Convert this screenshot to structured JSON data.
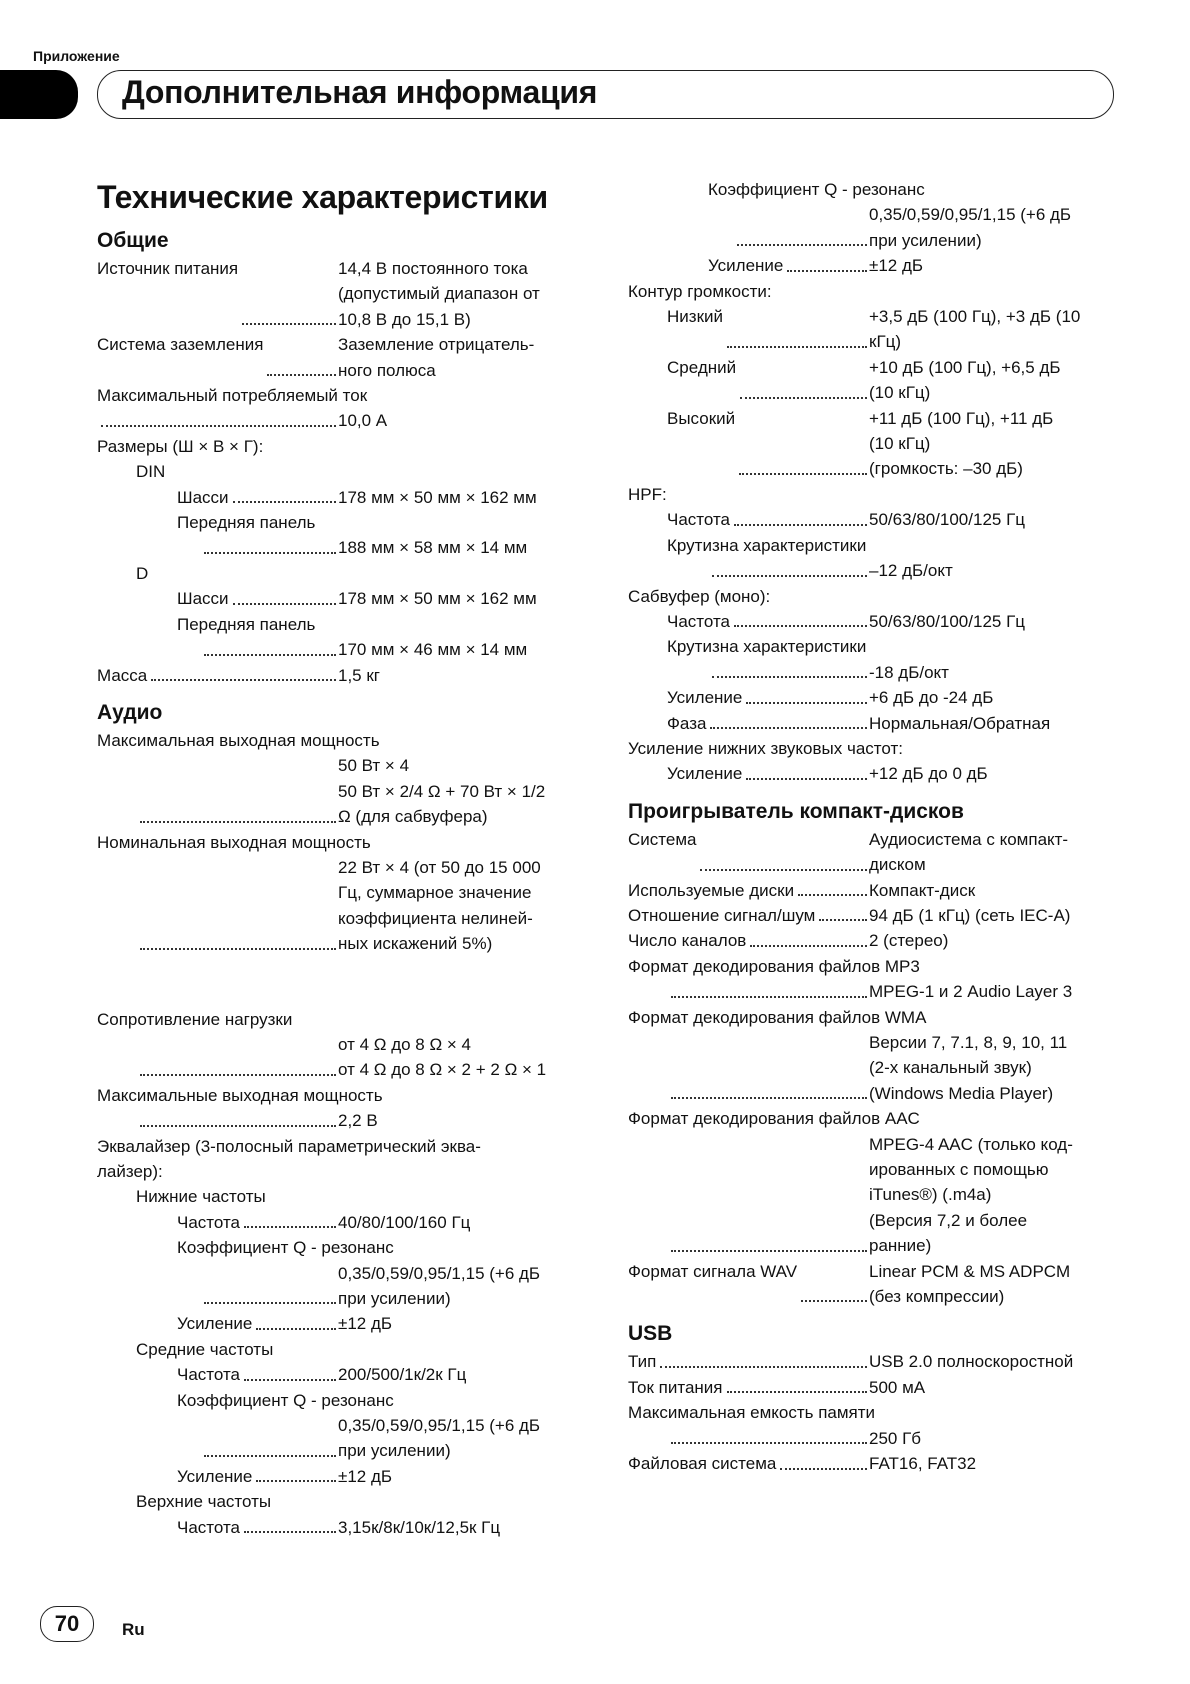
{
  "header": {
    "section": "Приложение",
    "title": "Дополнительная информация"
  },
  "footer": {
    "page": "70",
    "lang": "Ru"
  },
  "left": [
    {
      "h1": "Технические характеристики"
    },
    {
      "h2": "Общие",
      "first": true
    },
    {
      "l": "Источник питания",
      "i": 0,
      "d": true,
      "v": [
        "14,4 В постоянного тока",
        "(допустимый диапазон от",
        "10,8 В до 15,1 В)"
      ]
    },
    {
      "l": "Система заземления",
      "i": 0,
      "d": true,
      "v": [
        "Заземление отрицатель-",
        "ного полюса"
      ]
    },
    {
      "l": "Максимальный потребляемый ток",
      "i": 0
    },
    {
      "l": "",
      "i": 0,
      "d": true,
      "v": [
        "10,0 А"
      ]
    },
    {
      "l": "Размеры (Ш × В × Г):",
      "i": 0
    },
    {
      "l": "DIN",
      "i": 1
    },
    {
      "l": "Шасси",
      "i": 2,
      "d": true,
      "v": [
        "178 мм × 50 мм × 162 мм"
      ]
    },
    {
      "l": "Передняя панель",
      "i": 2
    },
    {
      "l": "",
      "i": 3,
      "d": true,
      "v": [
        "188 мм × 58 мм × 14 мм"
      ]
    },
    {
      "l": "D",
      "i": 1
    },
    {
      "l": "Шасси",
      "i": 2,
      "d": true,
      "v": [
        "178 мм × 50 мм × 162 мм"
      ]
    },
    {
      "l": "Передняя панель",
      "i": 2
    },
    {
      "l": "",
      "i": 3,
      "d": true,
      "v": [
        "170 мм × 46 мм × 14 мм"
      ]
    },
    {
      "l": "Масса",
      "i": 0,
      "d": true,
      "v": [
        "1,5 кг"
      ]
    },
    {
      "h2": "Аудио"
    },
    {
      "l": "Максимальная выходная мощность",
      "i": 0
    },
    {
      "l": "",
      "i": 1,
      "d": true,
      "v": [
        "50 Вт × 4",
        "50 Вт × 2/4 Ω + 70 Вт × 1/2",
        "Ω (для сабвуфера)"
      ]
    },
    {
      "l": "Номинальная выходная мощность",
      "i": 0
    },
    {
      "l": "",
      "i": 1,
      "d": true,
      "v": [
        "22 Вт × 4 (от 50 до 15 000",
        "Гц, суммарное значение",
        "коэффициента нелиней-",
        "ных искажений 5%)"
      ]
    },
    {
      "spacer": true
    },
    {
      "l": "Сопротивление нагрузки",
      "i": 0
    },
    {
      "l": "",
      "i": 1,
      "d": true,
      "v": [
        "от 4 Ω до 8 Ω × 4",
        "от 4 Ω до 8 Ω × 2 + 2 Ω × 1"
      ]
    },
    {
      "l": "Максимальные выходная мощность",
      "i": 0
    },
    {
      "l": "",
      "i": 1,
      "d": true,
      "v": [
        "2,2 В"
      ]
    },
    {
      "l": "Эквалайзер (3-полосный параметрический эква-",
      "i": 0
    },
    {
      "l": "лайзер):",
      "i": 0
    },
    {
      "l": "Нижние частоты",
      "i": 1
    },
    {
      "l": "Частота",
      "i": 2,
      "d": true,
      "v": [
        "40/80/100/160 Гц"
      ]
    },
    {
      "l": "Коэффициент Q - резонанс",
      "i": 2
    },
    {
      "l": "",
      "i": 3,
      "d": true,
      "v": [
        "0,35/0,59/0,95/1,15 (+6 дБ",
        "при усилении)"
      ]
    },
    {
      "l": "Усиление",
      "i": 2,
      "d": true,
      "v": [
        "±12 дБ"
      ]
    },
    {
      "l": "Средние частоты",
      "i": 1
    },
    {
      "l": "Частота",
      "i": 2,
      "d": true,
      "v": [
        "200/500/1к/2к Гц"
      ]
    },
    {
      "l": "Коэффициент Q - резонанс",
      "i": 2
    },
    {
      "l": "",
      "i": 3,
      "d": true,
      "v": [
        "0,35/0,59/0,95/1,15 (+6 дБ",
        "при усилении)"
      ]
    },
    {
      "l": "Усиление",
      "i": 2,
      "d": true,
      "v": [
        "±12 дБ"
      ]
    },
    {
      "l": "Верхние частоты",
      "i": 1
    },
    {
      "l": "Частота",
      "i": 2,
      "d": true,
      "v": [
        "3,15к/8к/10к/12,5к Гц"
      ]
    }
  ],
  "right": [
    {
      "l": "Коэффициент Q - резонанс",
      "i": 2
    },
    {
      "l": "",
      "i": 3,
      "d": true,
      "v": [
        "0,35/0,59/0,95/1,15 (+6 дБ",
        "при усилении)"
      ]
    },
    {
      "l": "Усиление",
      "i": 2,
      "d": true,
      "v": [
        "±12 дБ"
      ]
    },
    {
      "l": "Контур громкости:",
      "i": 0
    },
    {
      "l": "Низкий",
      "i": 1,
      "d": true,
      "v": [
        "+3,5 дБ (100 Гц), +3 дБ (10",
        "кГц)"
      ]
    },
    {
      "l": "Средний",
      "i": 1,
      "d": true,
      "v": [
        "+10 дБ (100 Гц), +6,5 дБ",
        "(10 кГц)"
      ]
    },
    {
      "l": "Высокий",
      "i": 1,
      "d": true,
      "v": [
        "+11 дБ (100 Гц), +11 дБ",
        "(10 кГц)",
        "(громкость: –30 дБ)"
      ]
    },
    {
      "l": "HPF:",
      "i": 0
    },
    {
      "l": "Частота",
      "i": 1,
      "d": true,
      "v": [
        "50/63/80/100/125 Гц"
      ]
    },
    {
      "l": "Крутизна характеристики",
      "i": 1
    },
    {
      "l": "",
      "i": 2,
      "d": true,
      "v": [
        "–12 дБ/окт"
      ]
    },
    {
      "l": "Сабвуфер (моно):",
      "i": 0
    },
    {
      "l": "Частота",
      "i": 1,
      "d": true,
      "v": [
        "50/63/80/100/125 Гц"
      ]
    },
    {
      "l": "Крутизна характеристики",
      "i": 1
    },
    {
      "l": "",
      "i": 2,
      "d": true,
      "v": [
        "-18 дБ/окт"
      ]
    },
    {
      "l": "Усиление",
      "i": 1,
      "d": true,
      "v": [
        "+6 дБ до -24 дБ"
      ]
    },
    {
      "l": "Фаза",
      "i": 1,
      "d": true,
      "v": [
        "Нормальная/Обратная"
      ]
    },
    {
      "l": "Усиление нижних звуковых частот:",
      "i": 0
    },
    {
      "l": "Усиление",
      "i": 1,
      "d": true,
      "v": [
        "+12 дБ до 0 дБ"
      ]
    },
    {
      "h2": "Проигрыватель компакт-дисков"
    },
    {
      "l": "Система",
      "i": 0,
      "d": true,
      "v": [
        "Аудиосистема с компакт-",
        "диском"
      ]
    },
    {
      "l": "Используемые диски",
      "i": 0,
      "d": true,
      "v": [
        "Компакт-диск"
      ]
    },
    {
      "l": "Отношение сигнал/шум",
      "i": 0,
      "d": true,
      "v": [
        "94 дБ (1 кГц) (сеть IEC-A)"
      ]
    },
    {
      "l": "Число каналов",
      "i": 0,
      "d": true,
      "v": [
        "2 (стерео)"
      ]
    },
    {
      "l": "Формат декодирования файлов MP3",
      "i": 0
    },
    {
      "l": "",
      "i": 1,
      "d": true,
      "v": [
        "MPEG-1 и 2 Audio Layer 3"
      ]
    },
    {
      "l": "Формат декодирования файлов WMA",
      "i": 0
    },
    {
      "l": "",
      "i": 1,
      "d": true,
      "v": [
        "Версии 7, 7.1, 8, 9, 10, 11",
        "(2-х канальный звук)",
        "(Windows Media Player)"
      ]
    },
    {
      "l": "Формат декодирования файлов AAC",
      "i": 0
    },
    {
      "l": "",
      "i": 1,
      "d": true,
      "v": [
        "MPEG-4 AAC (только код-",
        "ированных с помощью",
        "iTunes®) (.m4a)",
        "(Версия 7,2 и более",
        "ранние)"
      ]
    },
    {
      "l": "Формат сигнала WAV",
      "i": 0,
      "d": true,
      "v": [
        "Linear PCM & MS ADPCM",
        "(без компрессии)"
      ]
    },
    {
      "h2": "USB"
    },
    {
      "l": "Тип",
      "i": 0,
      "d": true,
      "v": [
        "USB 2.0 полноскоростной"
      ]
    },
    {
      "l": "Ток питания",
      "i": 0,
      "d": true,
      "v": [
        "500 мА"
      ]
    },
    {
      "l": "Максимальная емкость памяти",
      "i": 0
    },
    {
      "l": "",
      "i": 1,
      "d": true,
      "v": [
        "250 Гб"
      ]
    },
    {
      "l": "Файловая система",
      "i": 0,
      "d": true,
      "v": [
        "FAT16, FAT32"
      ]
    }
  ]
}
